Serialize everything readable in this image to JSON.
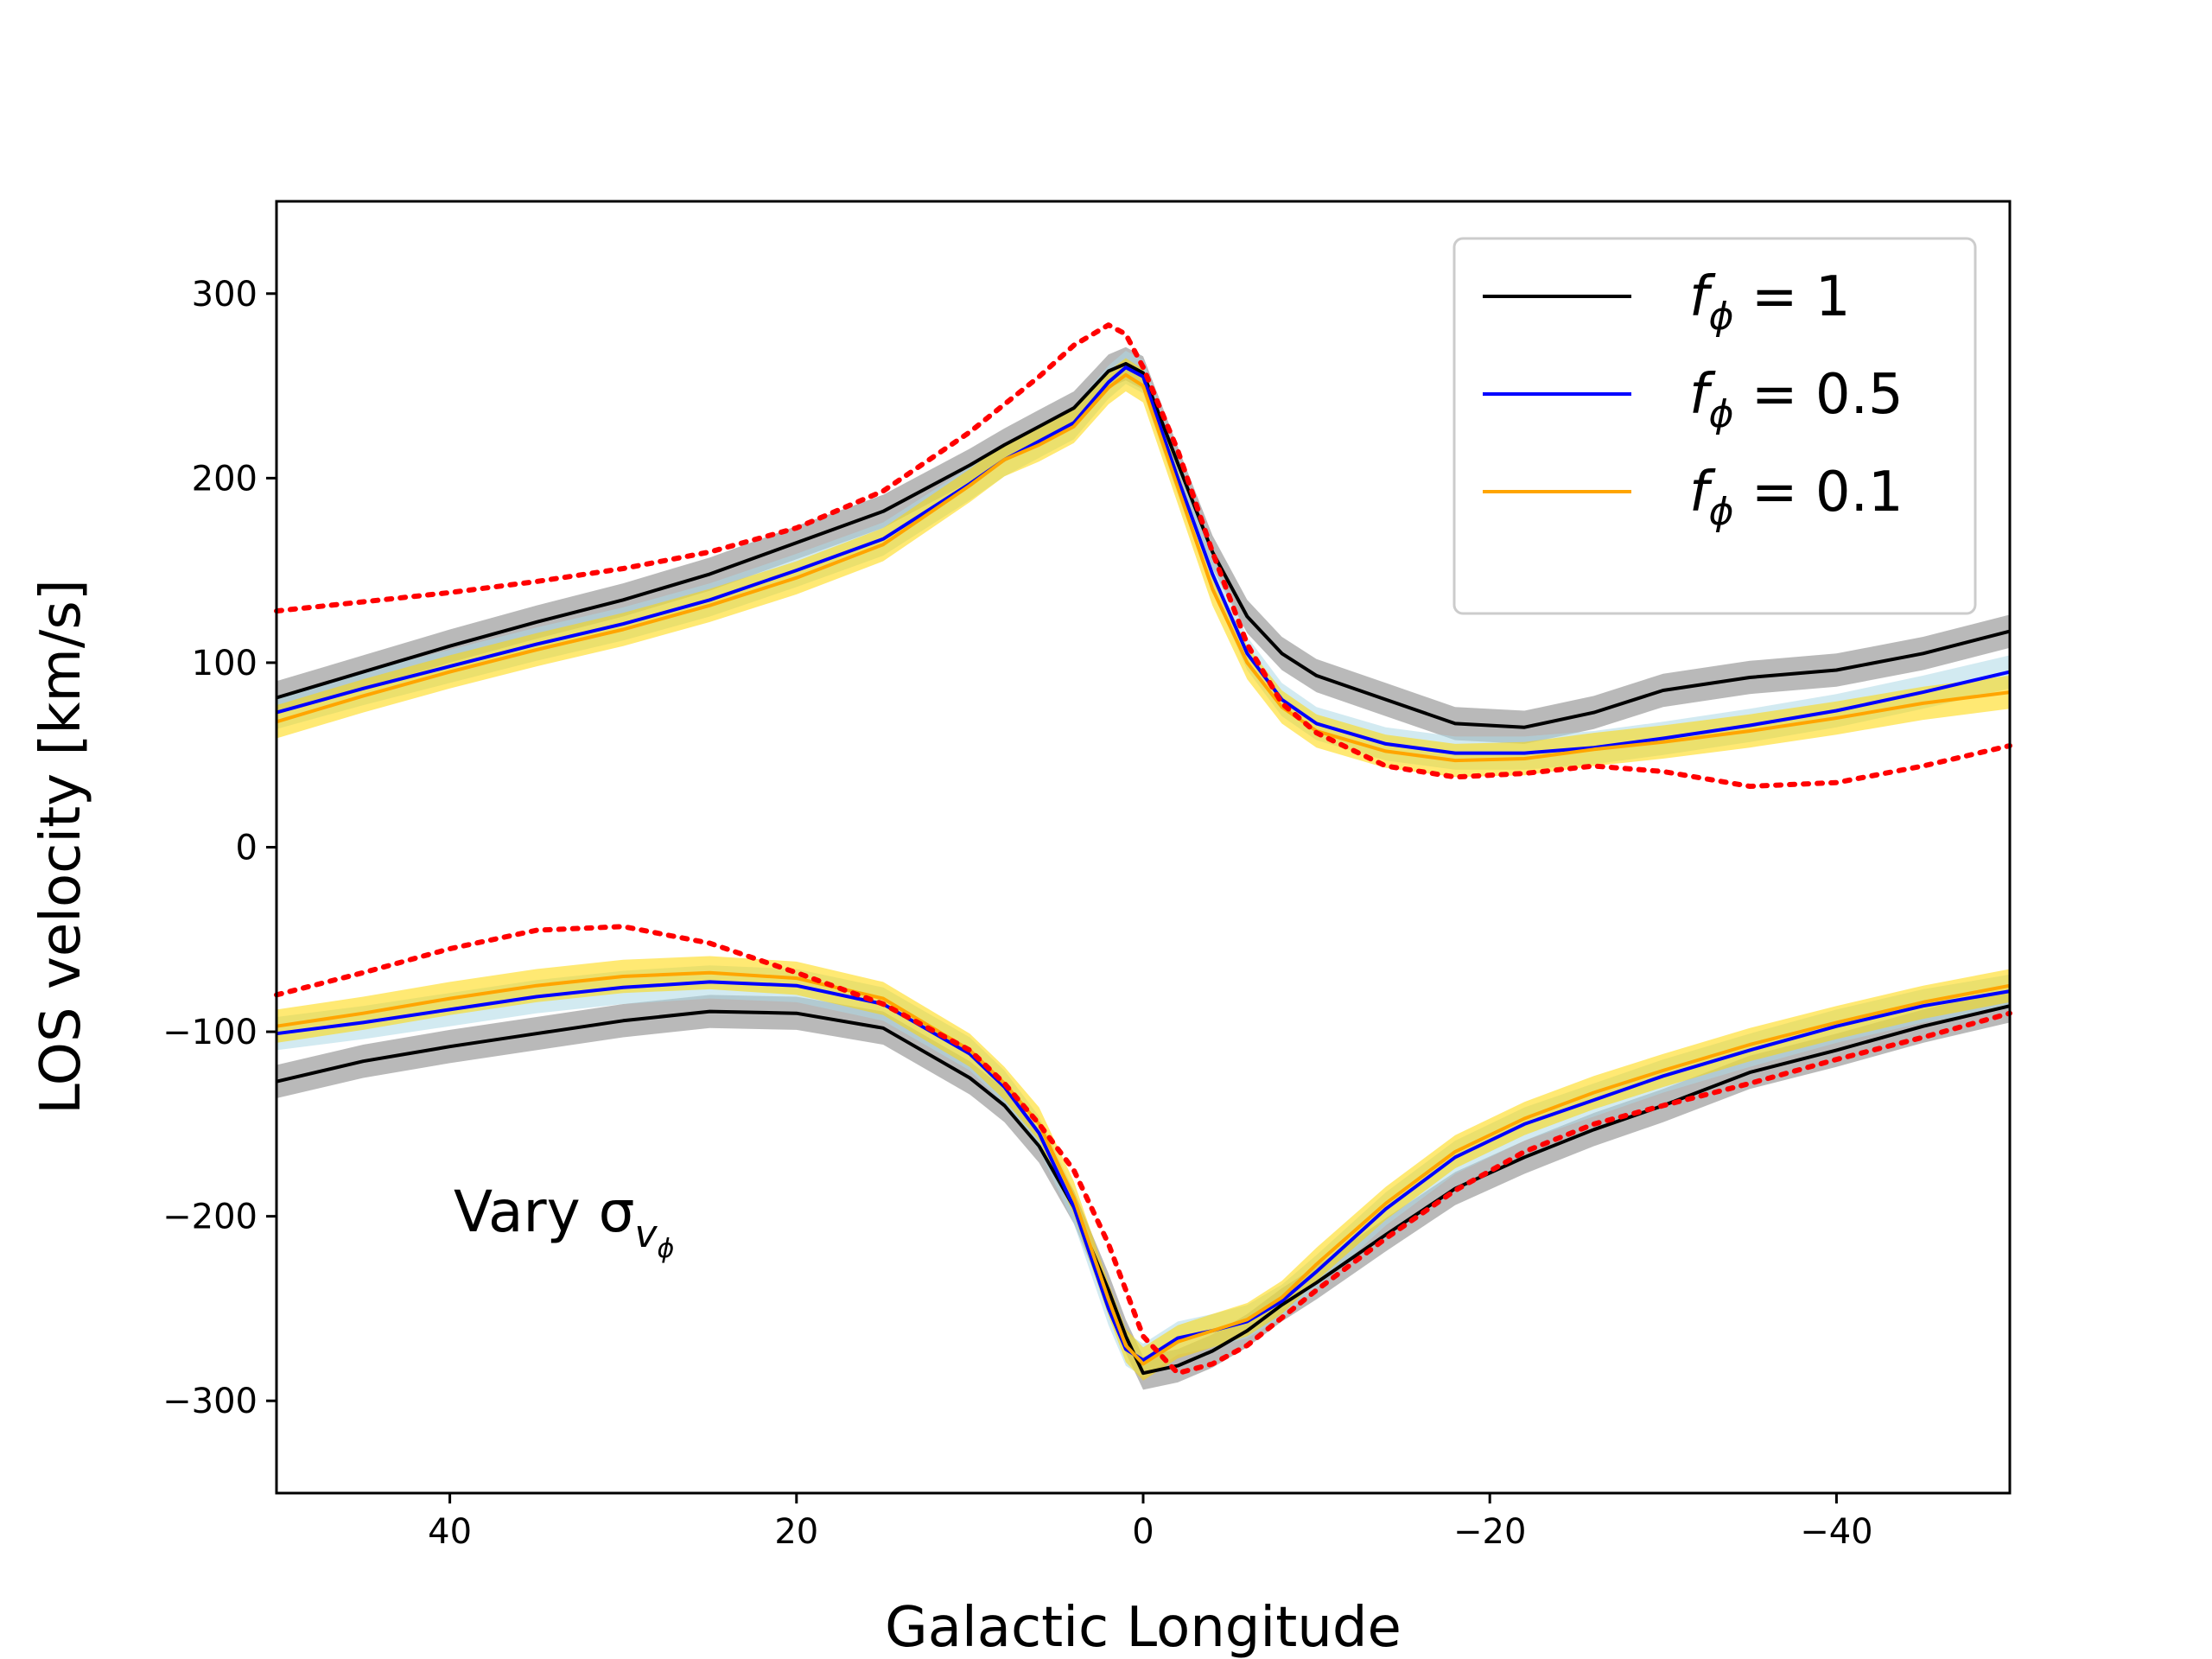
{
  "chart_data": {
    "type": "line",
    "xlabel": "Galactic Longitude",
    "ylabel": "LOS velocity [km/s]",
    "xlim": [
      50,
      -50
    ],
    "ylim": [
      -350,
      350
    ],
    "xticks": [
      40,
      20,
      0,
      -20,
      -40
    ],
    "yticks": [
      300,
      200,
      100,
      0,
      -100,
      -200,
      -300
    ],
    "xtick_labels": [
      "40",
      "20",
      "0",
      "−20",
      "−40"
    ],
    "ytick_labels": [
      "300",
      "200",
      "100",
      "0",
      "−100",
      "−200",
      "−300"
    ],
    "annotation": "Vary σ",
    "annotation_sub": "v",
    "annotation_subsub": "ϕ",
    "legend": {
      "placement": "top-right"
    },
    "series": [
      {
        "name": "fϕ = 1",
        "legend_f": "f",
        "legend_sub": "ϕ",
        "legend_eq": " = 1",
        "color": "#000000",
        "band_color": "#808080",
        "upper": {
          "x": [
            50,
            45,
            40,
            35,
            30,
            25,
            20,
            15,
            10,
            8,
            6,
            4,
            2,
            1,
            0,
            -2,
            -4,
            -6,
            -8,
            -10,
            -14,
            -18,
            -22,
            -26,
            -30,
            -35,
            -40,
            -45,
            -50
          ],
          "y": [
            81,
            95,
            109,
            122,
            134,
            148,
            165,
            182,
            207,
            218,
            228,
            238,
            258,
            262,
            257,
            208,
            160,
            125,
            105,
            93,
            80,
            67,
            65,
            73,
            85,
            92,
            96,
            105,
            117
          ]
        },
        "lower": {
          "x": [
            50,
            45,
            40,
            35,
            30,
            25,
            20,
            15,
            10,
            8,
            6,
            4,
            2,
            1,
            0,
            -2,
            -4,
            -6,
            -8,
            -10,
            -14,
            -18,
            -22,
            -26,
            -30,
            -35,
            -40,
            -45,
            -50
          ],
          "y": [
            -127,
            -116,
            -108,
            -101,
            -94,
            -89,
            -90,
            -98,
            -125,
            -140,
            -162,
            -195,
            -240,
            -265,
            -285,
            -281,
            -273,
            -262,
            -248,
            -236,
            -210,
            -185,
            -168,
            -153,
            -140,
            -122,
            -110,
            -97,
            -86
          ]
        }
      },
      {
        "name": "fϕ = 0.5",
        "legend_f": "f",
        "legend_sub": "ϕ",
        "legend_eq": " = 0.5",
        "color": "#0000ff",
        "band_color": "#add8e6",
        "upper": {
          "x": [
            50,
            45,
            40,
            35,
            30,
            25,
            20,
            15,
            10,
            8,
            6,
            4,
            2,
            1,
            0,
            -2,
            -4,
            -6,
            -8,
            -10,
            -14,
            -18,
            -22,
            -26,
            -30,
            -35,
            -40,
            -45,
            -50
          ],
          "y": [
            73,
            86,
            98,
            110,
            121,
            134,
            150,
            167,
            197,
            210,
            220,
            230,
            252,
            260,
            255,
            200,
            148,
            105,
            80,
            67,
            56,
            51,
            51,
            54,
            59,
            66,
            74,
            84,
            95
          ]
        },
        "lower": {
          "x": [
            50,
            45,
            40,
            35,
            30,
            25,
            20,
            15,
            10,
            8,
            6,
            4,
            2,
            1,
            0,
            -2,
            -4,
            -6,
            -8,
            -10,
            -14,
            -18,
            -22,
            -26,
            -30,
            -35,
            -40,
            -45,
            -50
          ],
          "y": [
            -101,
            -95,
            -88,
            -81,
            -76,
            -73,
            -75,
            -85,
            -112,
            -130,
            -155,
            -195,
            -250,
            -272,
            -278,
            -266,
            -262,
            -257,
            -246,
            -230,
            -196,
            -168,
            -150,
            -137,
            -124,
            -110,
            -97,
            -86,
            -78
          ]
        }
      },
      {
        "name": "fϕ = 0.1",
        "legend_f": "f",
        "legend_sub": "ϕ",
        "legend_eq": " = 0.1",
        "color": "#ffa500",
        "band_color": "#ffd700",
        "upper": {
          "x": [
            50,
            45,
            40,
            35,
            30,
            25,
            20,
            15,
            10,
            8,
            6,
            4,
            2,
            1,
            0,
            -2,
            -4,
            -6,
            -8,
            -10,
            -14,
            -18,
            -22,
            -26,
            -30,
            -35,
            -40,
            -45,
            -50
          ],
          "y": [
            68,
            82,
            95,
            107,
            118,
            131,
            146,
            164,
            196,
            210,
            218,
            228,
            249,
            256,
            250,
            195,
            140,
            100,
            76,
            63,
            52,
            47,
            48,
            53,
            57,
            63,
            70,
            78,
            84
          ]
        },
        "lower": {
          "x": [
            50,
            45,
            40,
            35,
            30,
            25,
            20,
            15,
            10,
            8,
            6,
            4,
            2,
            1,
            0,
            -2,
            -4,
            -6,
            -8,
            -10,
            -14,
            -18,
            -22,
            -26,
            -30,
            -35,
            -40,
            -45,
            -50
          ],
          "y": [
            -97,
            -90,
            -82,
            -75,
            -70,
            -68,
            -71,
            -82,
            -110,
            -128,
            -150,
            -190,
            -245,
            -270,
            -280,
            -268,
            -262,
            -256,
            -244,
            -226,
            -193,
            -165,
            -147,
            -133,
            -121,
            -107,
            -95,
            -84,
            -75
          ]
        }
      },
      {
        "name": "",
        "style": "dotted",
        "color": "#ff0000",
        "upper": {
          "x": [
            50,
            45,
            40,
            35,
            30,
            25,
            20,
            15,
            10,
            8,
            6,
            4,
            2,
            1,
            0,
            -2,
            -4,
            -6,
            -8,
            -10,
            -14,
            -18,
            -22,
            -26,
            -30,
            -35,
            -40,
            -45,
            -50
          ],
          "y": [
            128,
            133,
            138,
            144,
            151,
            160,
            173,
            193,
            225,
            240,
            255,
            272,
            283,
            278,
            260,
            215,
            160,
            110,
            78,
            62,
            44,
            38,
            40,
            44,
            41,
            33,
            35,
            44,
            55
          ]
        },
        "lower": {
          "x": [
            50,
            45,
            40,
            35,
            30,
            25,
            20,
            15,
            10,
            8,
            6,
            4,
            2,
            0,
            -2,
            -4,
            -6,
            -8,
            -10,
            -14,
            -18,
            -22,
            -26,
            -30,
            -35,
            -40,
            -45,
            -50
          ],
          "y": [
            -80,
            -68,
            -55,
            -45,
            -43,
            -52,
            -68,
            -85,
            -110,
            -128,
            -150,
            -175,
            -215,
            -265,
            -285,
            -280,
            -270,
            -255,
            -240,
            -212,
            -186,
            -165,
            -150,
            -140,
            -128,
            -115,
            -103,
            -90
          ]
        }
      }
    ]
  }
}
